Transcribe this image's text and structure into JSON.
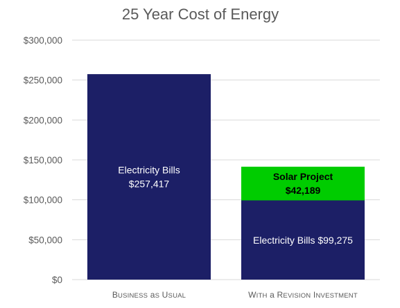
{
  "chart_data": {
    "type": "bar",
    "stacked": true,
    "title": "25 Year Cost of Energy",
    "xlabel": "",
    "ylabel": "",
    "ylim": [
      0,
      300000
    ],
    "yticks": [
      0,
      50000,
      100000,
      150000,
      200000,
      250000,
      300000
    ],
    "ytick_labels": [
      "$0",
      "$50,000",
      "$100,000",
      "$150,000",
      "$200,000",
      "$250,000",
      "$300,000"
    ],
    "grid": true,
    "legend": "none",
    "categories": [
      "Business as Usual",
      "With a ReVision Investment"
    ],
    "series": [
      {
        "values": [
          257417,
          99275
        ],
        "color": "#1c1f66",
        "labels": [
          [
            "Electricity Bills",
            "$257,417"
          ],
          [
            "Electricity Bills $99,275"
          ]
        ],
        "label_color": "#ffffff"
      },
      {
        "values": [
          0,
          42189
        ],
        "color": "#00cc00",
        "labels": [
          [],
          [
            "Solar Project",
            "$42,189"
          ]
        ],
        "label_color": "#000000",
        "label_bold": true
      }
    ]
  }
}
